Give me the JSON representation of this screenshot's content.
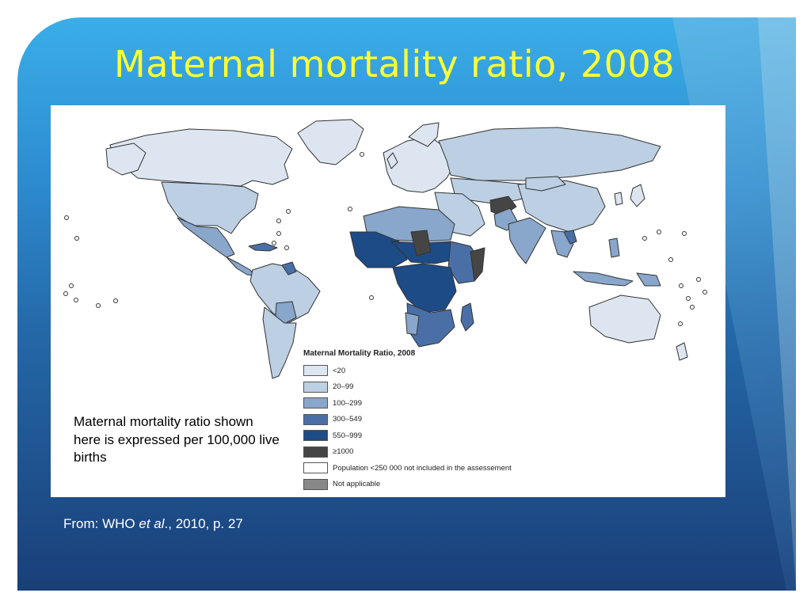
{
  "slide": {
    "title": "Maternal mortality ratio, 2008",
    "note": "Maternal mortality ratio shown here is expressed per 100,000 live births",
    "source_prefix": "From:  WHO ",
    "source_italic": "et al",
    "source_suffix": "., 2010, p. 27"
  },
  "legend": {
    "title": "Maternal Mortality Ratio, 2008",
    "items": [
      {
        "label": "<20",
        "color": "#dde6f0"
      },
      {
        "label": "20–99",
        "color": "#bccfe3"
      },
      {
        "label": "100–299",
        "color": "#89a6cb"
      },
      {
        "label": "300–549",
        "color": "#4a6fa6"
      },
      {
        "label": "550–999",
        "color": "#1d4b86"
      },
      {
        "label": "≥1000",
        "color": "#454545"
      },
      {
        "label": "Population <250 000 not included in the assessement",
        "color": "#ffffff"
      },
      {
        "label": "Not applicable",
        "color": "#888888"
      }
    ]
  },
  "colors": {
    "title": "#ffff33",
    "border": "#333333"
  }
}
